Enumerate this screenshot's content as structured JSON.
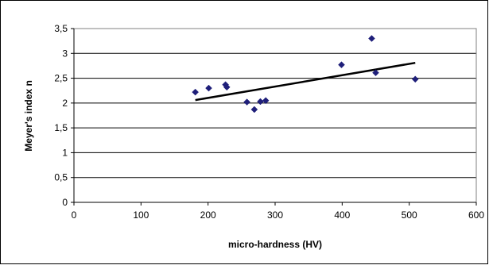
{
  "chart_data": {
    "type": "scatter",
    "xlabel": "micro-hardness (HV)",
    "ylabel": "Meyer's index n",
    "xlim": [
      0,
      600
    ],
    "ylim": [
      0,
      3.5
    ],
    "x_ticks": [
      "0",
      "100",
      "200",
      "300",
      "400",
      "500",
      "600"
    ],
    "y_ticks": [
      "0",
      "0,5",
      "1",
      "1,5",
      "2",
      "2,5",
      "3",
      "3,5"
    ],
    "grid": "horizontal",
    "legend": "none",
    "series": [
      {
        "marker": "diamond",
        "color": "#1f1f7a",
        "points": [
          {
            "x": 181,
            "y": 2.22
          },
          {
            "x": 201,
            "y": 2.3
          },
          {
            "x": 226,
            "y": 2.37
          },
          {
            "x": 228,
            "y": 2.32
          },
          {
            "x": 258,
            "y": 2.02
          },
          {
            "x": 269,
            "y": 1.87
          },
          {
            "x": 278,
            "y": 2.03
          },
          {
            "x": 286,
            "y": 2.05
          },
          {
            "x": 399,
            "y": 2.77
          },
          {
            "x": 444,
            "y": 3.3
          },
          {
            "x": 450,
            "y": 2.61
          },
          {
            "x": 509,
            "y": 2.48
          }
        ]
      }
    ],
    "trendline": {
      "x": [
        181,
        509
      ],
      "y": [
        2.06,
        2.81
      ],
      "color": "#000000"
    }
  }
}
